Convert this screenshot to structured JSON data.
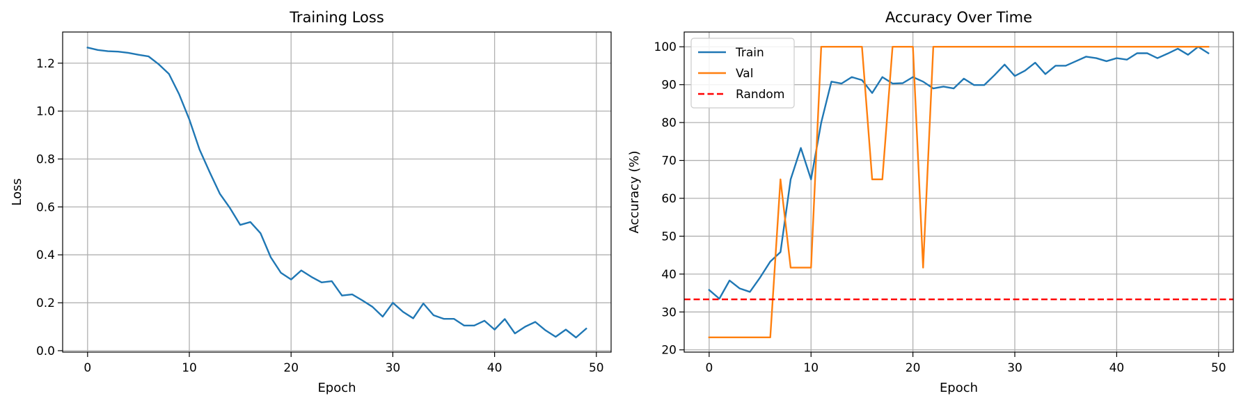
{
  "chart_data": [
    {
      "type": "line",
      "title": "Training Loss",
      "xlabel": "Epoch",
      "ylabel": "Loss",
      "xlim": [
        -2.45,
        51.45
      ],
      "ylim": [
        -0.006,
        1.33
      ],
      "xticks": [
        0,
        10,
        20,
        30,
        40,
        50
      ],
      "yticks": [
        0.0,
        0.2,
        0.4,
        0.6,
        0.8,
        1.0,
        1.2
      ],
      "ytick_format": 1,
      "grid": true,
      "x": [
        0,
        1,
        2,
        3,
        4,
        5,
        6,
        7,
        8,
        9,
        10,
        11,
        12,
        13,
        14,
        15,
        16,
        17,
        18,
        19,
        20,
        21,
        22,
        23,
        24,
        25,
        26,
        27,
        28,
        29,
        30,
        31,
        32,
        33,
        34,
        35,
        36,
        37,
        38,
        39,
        40,
        41,
        42,
        43,
        44,
        45,
        46,
        47,
        48,
        49
      ],
      "series": [
        {
          "color": "#1f77b4",
          "dashed": false,
          "values": [
            1.265,
            1.255,
            1.25,
            1.248,
            1.243,
            1.235,
            1.228,
            1.195,
            1.155,
            1.07,
            0.965,
            0.84,
            0.745,
            0.655,
            0.595,
            0.525,
            0.537,
            0.49,
            0.39,
            0.325,
            0.297,
            0.335,
            0.308,
            0.285,
            0.29,
            0.23,
            0.235,
            0.21,
            0.183,
            0.142,
            0.2,
            0.162,
            0.135,
            0.197,
            0.148,
            0.133,
            0.133,
            0.105,
            0.105,
            0.125,
            0.088,
            0.132,
            0.072,
            0.1,
            0.12,
            0.085,
            0.058,
            0.088,
            0.055,
            0.092
          ]
        }
      ]
    },
    {
      "type": "line",
      "title": "Accuracy Over Time",
      "xlabel": "Epoch",
      "ylabel": "Accuracy (%)",
      "xlim": [
        -2.45,
        51.45
      ],
      "ylim": [
        19.4,
        103.9
      ],
      "xticks": [
        0,
        10,
        20,
        30,
        40,
        50
      ],
      "yticks": [
        20,
        30,
        40,
        50,
        60,
        70,
        80,
        90,
        100
      ],
      "ytick_format": 0,
      "grid": true,
      "legend": "top-left",
      "x": [
        0,
        1,
        2,
        3,
        4,
        5,
        6,
        7,
        8,
        9,
        10,
        11,
        12,
        13,
        14,
        15,
        16,
        17,
        18,
        19,
        20,
        21,
        22,
        23,
        24,
        25,
        26,
        27,
        28,
        29,
        30,
        31,
        32,
        33,
        34,
        35,
        36,
        37,
        38,
        39,
        40,
        41,
        42,
        43,
        44,
        45,
        46,
        47,
        48,
        49
      ],
      "series": [
        {
          "name": "Train",
          "color": "#1f77b4",
          "dashed": false,
          "values": [
            35.8,
            33.5,
            38.3,
            36.2,
            35.3,
            39.1,
            43.3,
            45.8,
            65.0,
            73.3,
            65.0,
            80.0,
            90.8,
            90.3,
            92.0,
            91.2,
            87.8,
            92.0,
            90.3,
            90.4,
            92.0,
            90.8,
            89.0,
            89.5,
            89.0,
            91.6,
            89.9,
            89.9,
            92.5,
            95.3,
            92.3,
            93.7,
            95.8,
            92.8,
            95.0,
            95.0,
            96.2,
            97.4,
            97.0,
            96.2,
            97.0,
            96.6,
            98.3,
            98.3,
            97.0,
            98.2,
            99.5,
            97.9,
            100.0,
            98.3
          ]
        },
        {
          "name": "Val",
          "color": "#ff7f0e",
          "dashed": false,
          "values": [
            23.3,
            23.3,
            23.3,
            23.3,
            23.3,
            23.3,
            23.3,
            65.0,
            41.7,
            41.7,
            41.7,
            100,
            100,
            100,
            100,
            100,
            65.0,
            65.0,
            100,
            100,
            100,
            41.7,
            100,
            100,
            100,
            100,
            100,
            100,
            100,
            100,
            100,
            100,
            100,
            100,
            100,
            100,
            100,
            100,
            100,
            100,
            100,
            100,
            100,
            100,
            100,
            100,
            100,
            100,
            100,
            100
          ]
        },
        {
          "name": "Random",
          "color": "#ff0000",
          "dashed": true,
          "hline": 33.33
        }
      ]
    }
  ]
}
